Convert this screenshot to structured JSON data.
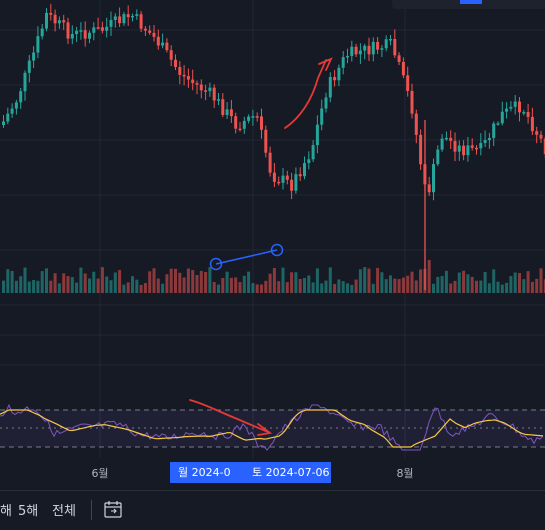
{
  "colors": {
    "background": "#161a25",
    "up": "#26a69a",
    "down": "#ef5350",
    "rsi_line": "#7e57c2",
    "rsi_ma": "#f7c843",
    "rsi_band": "#7e57c2",
    "drawing_red": "#e53935",
    "drawing_blue": "#2962ff"
  },
  "xaxis": {
    "labels": [
      "6월",
      "8월"
    ]
  },
  "crosshair": {
    "badge_left": "월 2024-0",
    "badge_right": "토 2024-07-06"
  },
  "toolbar": {
    "period_partial": "해",
    "five_year": "5해",
    "all": "전체",
    "date_range_icon": "calendar-goto-icon"
  },
  "chart_data": {
    "type": "candlestick",
    "panes": [
      "price",
      "volume",
      "rsi"
    ],
    "price_scale_visible": false,
    "rsi_levels": {
      "upper": 70,
      "middle": 50,
      "lower": 30
    },
    "drawings": [
      {
        "type": "arrow",
        "color": "red",
        "pane": "price"
      },
      {
        "type": "trend_line",
        "color": "blue",
        "pane": "volume"
      },
      {
        "type": "arrow",
        "color": "red",
        "pane": "rsi"
      }
    ]
  }
}
